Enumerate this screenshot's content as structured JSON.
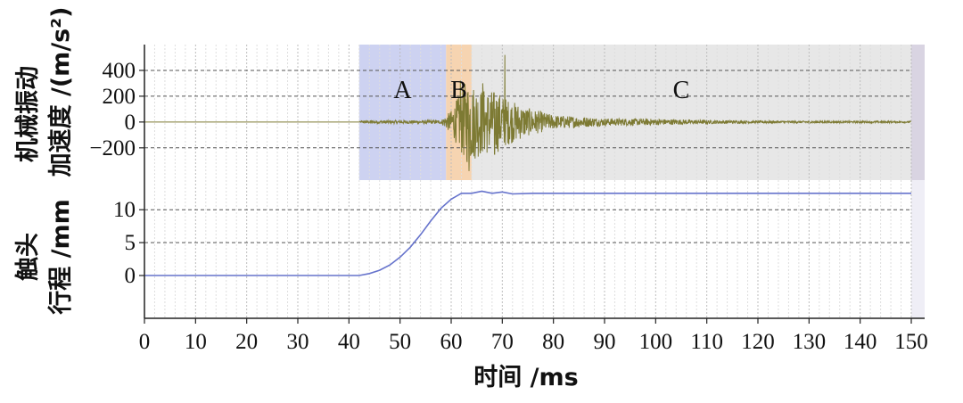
{
  "chart_data": [
    {
      "type": "line",
      "panel": "top",
      "ylabel_line1": "机械振动",
      "ylabel_line2": "加速度 /(m/s²)",
      "ylim": [
        -450,
        600
      ],
      "yticks": [
        400,
        200,
        0,
        -200
      ],
      "ytick_labels": [
        "400",
        "200",
        "0",
        "−200"
      ],
      "regions": [
        {
          "label": "A",
          "x_start": 42,
          "x_end": 59,
          "color": "#c8cdf0"
        },
        {
          "label": "B",
          "x_start": 59,
          "x_end": 64,
          "color": "#f5cfa8"
        },
        {
          "label": "C",
          "x_start": 64,
          "x_end": 150,
          "color": "#e4e4e4"
        }
      ],
      "series": [
        {
          "color": "#7d7a33",
          "envelope": [
            {
              "x": 0,
              "amp": 0
            },
            {
              "x": 42,
              "amp": 0
            },
            {
              "x": 42.5,
              "amp": 12
            },
            {
              "x": 58,
              "amp": 14
            },
            {
              "x": 60,
              "amp": 90
            },
            {
              "x": 62,
              "amp": 250
            },
            {
              "x": 63,
              "amp": 330
            },
            {
              "x": 66,
              "amp": 260
            },
            {
              "x": 69,
              "amp": 240
            },
            {
              "x": 71,
              "amp": 180
            },
            {
              "x": 75,
              "amp": 110
            },
            {
              "x": 80,
              "amp": 55
            },
            {
              "x": 90,
              "amp": 30
            },
            {
              "x": 100,
              "amp": 25
            },
            {
              "x": 110,
              "amp": 15
            },
            {
              "x": 120,
              "amp": 10
            },
            {
              "x": 150,
              "amp": 6
            }
          ],
          "peaks": [
            {
              "x": 70.5,
              "y": 520
            },
            {
              "x": 61.8,
              "y": 320
            },
            {
              "x": 63.5,
              "y": -380
            },
            {
              "x": 66.2,
              "y": 300
            },
            {
              "x": 68.5,
              "y": -250
            }
          ]
        }
      ]
    },
    {
      "type": "line",
      "panel": "bottom",
      "ylabel_line1": "触头",
      "ylabel_line2": "行程 /mm",
      "ylim": [
        -6.5,
        14.5
      ],
      "yticks": [
        10,
        5,
        0
      ],
      "ytick_labels": [
        "10",
        "5",
        "0"
      ],
      "xlabel": "时间 /ms",
      "xlim": [
        0,
        150
      ],
      "xticks": [
        0,
        10,
        20,
        30,
        40,
        50,
        60,
        70,
        80,
        90,
        100,
        110,
        120,
        130,
        140,
        150
      ],
      "xtick_labels": [
        "0",
        "10",
        "20",
        "30",
        "40",
        "50",
        "60",
        "70",
        "80",
        "90",
        "100",
        "110",
        "120",
        "130",
        "140",
        "150"
      ],
      "series": [
        {
          "color": "#6673cc",
          "x": [
            0,
            42,
            44,
            46,
            48,
            50,
            52,
            54,
            56,
            58,
            60,
            62,
            64,
            66,
            68,
            70,
            72,
            76,
            150
          ],
          "y": [
            0,
            0,
            0.3,
            0.8,
            1.6,
            2.8,
            4.3,
            6.2,
            8.3,
            10.2,
            11.6,
            12.5,
            12.5,
            12.8,
            12.5,
            12.7,
            12.4,
            12.5,
            12.5
          ]
        }
      ]
    }
  ]
}
